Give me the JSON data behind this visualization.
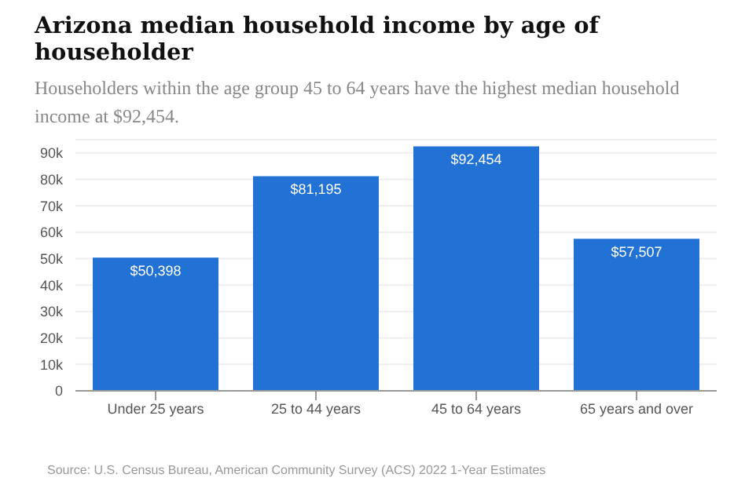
{
  "chart_data": {
    "type": "bar",
    "title": "Arizona median household income by age of householder",
    "subtitle": "Householders within the age group 45 to 64 years have the highest median household income at $92,454.",
    "categories": [
      "Under 25 years",
      "25 to 44 years",
      "45 to 64 years",
      "65 years and over"
    ],
    "values": [
      50398,
      81195,
      92454,
      57507
    ],
    "value_labels": [
      "$50,398",
      "$81,195",
      "$92,454",
      "$57,507"
    ],
    "color": "#2272d6",
    "ylim": [
      0,
      95000
    ],
    "yticks": [
      0,
      {
        "value": 10000,
        "label": "10k"
      },
      {
        "value": 20000,
        "label": "20k"
      },
      {
        "value": 30000,
        "label": "30k"
      },
      {
        "value": 40000,
        "label": "40k"
      },
      {
        "value": 50000,
        "label": "50k"
      },
      {
        "value": 60000,
        "label": "60k"
      },
      {
        "value": 70000,
        "label": "70k"
      },
      {
        "value": 80000,
        "label": "80k"
      },
      {
        "value": 90000,
        "label": "90k"
      }
    ],
    "grid": "y",
    "annotations": [
      "Source: U.S. Census Bureau, American Community Survey (ACS) 2022 1-Year Estimates"
    ]
  }
}
